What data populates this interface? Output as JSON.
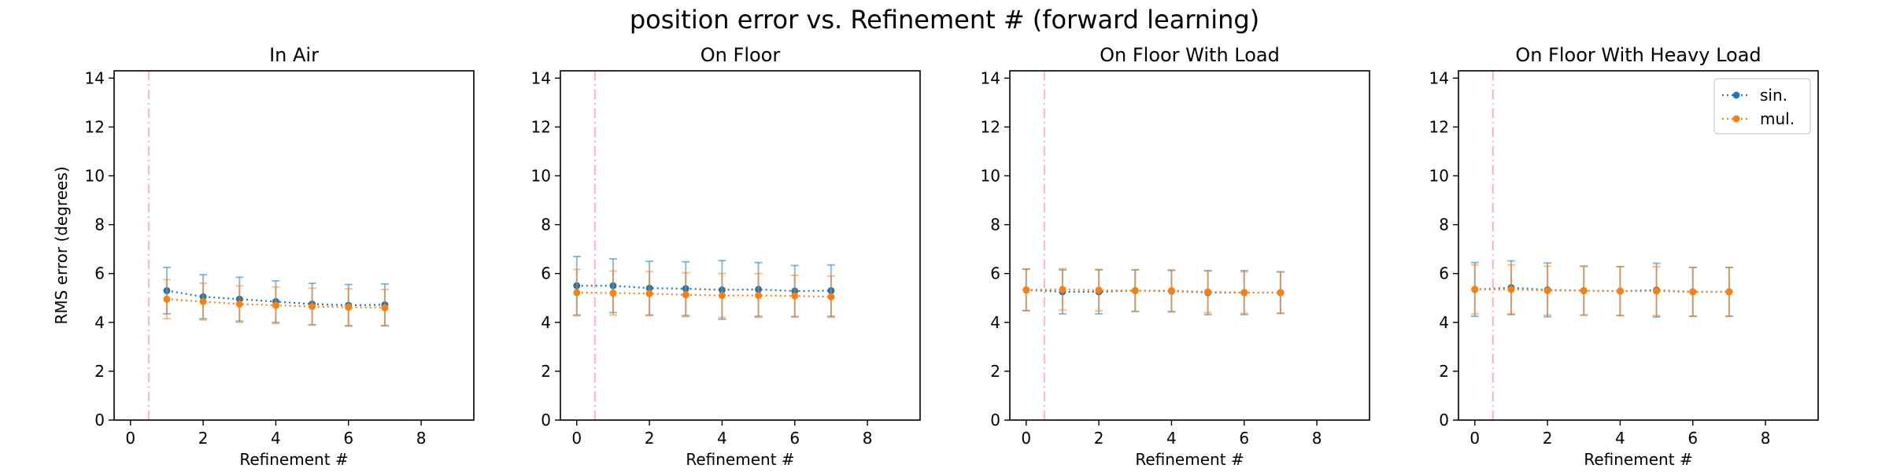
{
  "title": "position error vs. Refinement # (forward learning)",
  "colors": {
    "sin": "#1f77b4",
    "mul": "#ff7f0e",
    "vline": "#ffb6c1"
  },
  "chart_data": [
    {
      "type": "line",
      "title": "In Air",
      "xlabel": "Refinement #",
      "ylabel": "RMS error (degrees)",
      "xlim": [
        -0.45,
        9.45
      ],
      "ylim": [
        0,
        14.3
      ],
      "xticks": [
        0,
        2,
        4,
        6,
        8
      ],
      "yticks": [
        0,
        2,
        4,
        6,
        8,
        10,
        12,
        14
      ],
      "vline_x": 0.5,
      "legend": false,
      "series": [
        {
          "name": "sin.",
          "x": [
            1,
            2,
            3,
            4,
            5,
            6,
            7
          ],
          "y": [
            5.3,
            5.05,
            4.95,
            4.85,
            4.75,
            4.7,
            4.72
          ],
          "err": [
            0.95,
            0.9,
            0.9,
            0.85,
            0.85,
            0.85,
            0.85
          ]
        },
        {
          "name": "mul.",
          "x": [
            1,
            2,
            3,
            4,
            5,
            6,
            7
          ],
          "y": [
            4.95,
            4.85,
            4.75,
            4.7,
            4.65,
            4.62,
            4.6
          ],
          "err": [
            0.8,
            0.75,
            0.75,
            0.75,
            0.75,
            0.75,
            0.75
          ]
        }
      ]
    },
    {
      "type": "line",
      "title": "On Floor",
      "xlabel": "Refinement #",
      "ylabel": "",
      "xlim": [
        -0.45,
        9.45
      ],
      "ylim": [
        0,
        14.3
      ],
      "xticks": [
        0,
        2,
        4,
        6,
        8
      ],
      "yticks": [
        0,
        2,
        4,
        6,
        8,
        10,
        12,
        14
      ],
      "vline_x": 0.5,
      "legend": false,
      "series": [
        {
          "name": "sin.",
          "x": [
            0,
            1,
            2,
            3,
            4,
            5,
            6,
            7
          ],
          "y": [
            5.5,
            5.5,
            5.4,
            5.38,
            5.33,
            5.35,
            5.28,
            5.3
          ],
          "err": [
            1.2,
            1.1,
            1.1,
            1.1,
            1.2,
            1.1,
            1.05,
            1.05
          ]
        },
        {
          "name": "mul.",
          "x": [
            0,
            1,
            2,
            3,
            4,
            5,
            6,
            7
          ],
          "y": [
            5.22,
            5.2,
            5.18,
            5.13,
            5.1,
            5.1,
            5.08,
            5.05
          ],
          "err": [
            0.95,
            0.9,
            0.9,
            0.9,
            0.9,
            0.9,
            0.85,
            0.85
          ]
        }
      ]
    },
    {
      "type": "line",
      "title": "On Floor With Load",
      "xlabel": "Refinement #",
      "ylabel": "",
      "xlim": [
        -0.45,
        9.45
      ],
      "ylim": [
        0,
        14.3
      ],
      "xticks": [
        0,
        2,
        4,
        6,
        8
      ],
      "yticks": [
        0,
        2,
        4,
        6,
        8,
        10,
        12,
        14
      ],
      "vline_x": 0.5,
      "legend": false,
      "series": [
        {
          "name": "sin.",
          "x": [
            0,
            1,
            2,
            3,
            4,
            5,
            6,
            7
          ],
          "y": [
            5.33,
            5.25,
            5.25,
            5.3,
            5.28,
            5.22,
            5.22,
            5.22
          ],
          "err": [
            0.85,
            0.9,
            0.9,
            0.85,
            0.85,
            0.9,
            0.9,
            0.85
          ]
        },
        {
          "name": "mul.",
          "x": [
            0,
            1,
            2,
            3,
            4,
            5,
            6,
            7
          ],
          "y": [
            5.33,
            5.35,
            5.32,
            5.3,
            5.3,
            5.25,
            5.22,
            5.22
          ],
          "err": [
            0.85,
            0.85,
            0.85,
            0.85,
            0.85,
            0.85,
            0.85,
            0.85
          ]
        }
      ]
    },
    {
      "type": "line",
      "title": "On Floor With Heavy Load",
      "xlabel": "Refinement #",
      "ylabel": "",
      "xlim": [
        -0.45,
        9.45
      ],
      "ylim": [
        0,
        14.3
      ],
      "xticks": [
        0,
        2,
        4,
        6,
        8
      ],
      "yticks": [
        0,
        2,
        4,
        6,
        8,
        10,
        12,
        14
      ],
      "vline_x": 0.5,
      "legend": true,
      "legend_loc": "top-right",
      "series": [
        {
          "name": "sin.",
          "x": [
            0,
            1,
            2,
            3,
            4,
            5,
            6,
            7
          ],
          "y": [
            5.35,
            5.42,
            5.33,
            5.3,
            5.28,
            5.32,
            5.25,
            5.25
          ],
          "err": [
            1.1,
            1.1,
            1.1,
            1.0,
            1.0,
            1.1,
            1.0,
            1.0
          ]
        },
        {
          "name": "mul.",
          "x": [
            0,
            1,
            2,
            3,
            4,
            5,
            6,
            7
          ],
          "y": [
            5.35,
            5.35,
            5.3,
            5.3,
            5.28,
            5.28,
            5.25,
            5.25
          ],
          "err": [
            1.0,
            1.0,
            1.0,
            1.0,
            1.0,
            1.0,
            1.0,
            1.0
          ]
        }
      ]
    }
  ]
}
